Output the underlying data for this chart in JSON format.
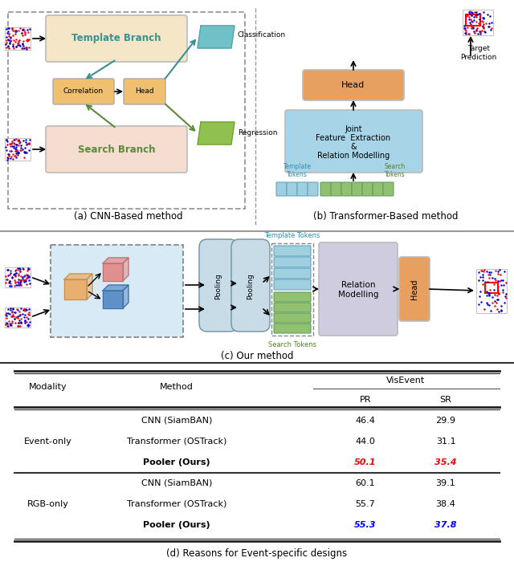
{
  "fig_width": 6.4,
  "fig_height": 7.15,
  "bg_color": "#ffffff",
  "table_title": "(d) Reasons for Event-specific designs",
  "table_header_group": "VisEvent",
  "table_col0": "Modality",
  "table_col1": "Method",
  "table_col2": "PR",
  "table_col3": "SR",
  "rows": [
    {
      "modality": "Event-only",
      "method": "CNN (SiamBAN)",
      "pr": "46.4",
      "sr": "29.9",
      "pr_color": "#000000",
      "sr_color": "#000000",
      "bold": false
    },
    {
      "modality": "",
      "method": "Transformer (OSTrack)",
      "pr": "44.0",
      "sr": "31.1",
      "pr_color": "#000000",
      "sr_color": "#000000",
      "bold": false
    },
    {
      "modality": "",
      "method": "Pooler (Ours)",
      "pr": "50.1",
      "sr": "35.4",
      "pr_color": "#ff0000",
      "sr_color": "#ff0000",
      "bold": true
    },
    {
      "modality": "RGB-only",
      "method": "CNN (SiamBAN)",
      "pr": "60.1",
      "sr": "39.1",
      "pr_color": "#000000",
      "sr_color": "#000000",
      "bold": false
    },
    {
      "modality": "",
      "method": "Transformer (OSTrack)",
      "pr": "55.7",
      "sr": "38.4",
      "pr_color": "#000000",
      "sr_color": "#000000",
      "bold": false
    },
    {
      "modality": "",
      "method": "Pooler (Ours)",
      "pr": "55.3",
      "sr": "37.8",
      "pr_color": "#0000ff",
      "sr_color": "#0000ff",
      "bold": true
    }
  ],
  "caption_a": "(a) CNN-Based method",
  "caption_b": "(b) Transformer-Based method",
  "caption_c": "(c) Our method",
  "color_template_box": "#f5e6c8",
  "color_search_box": "#f5ddd0",
  "color_head_corr": "#f0c070",
  "color_blue_box": "#a8d4e8",
  "color_head_orange": "#e8a060",
  "color_pooling": "#c8dce8",
  "color_relation": "#d0cce0",
  "color_our_bg": "#d8eaf5"
}
